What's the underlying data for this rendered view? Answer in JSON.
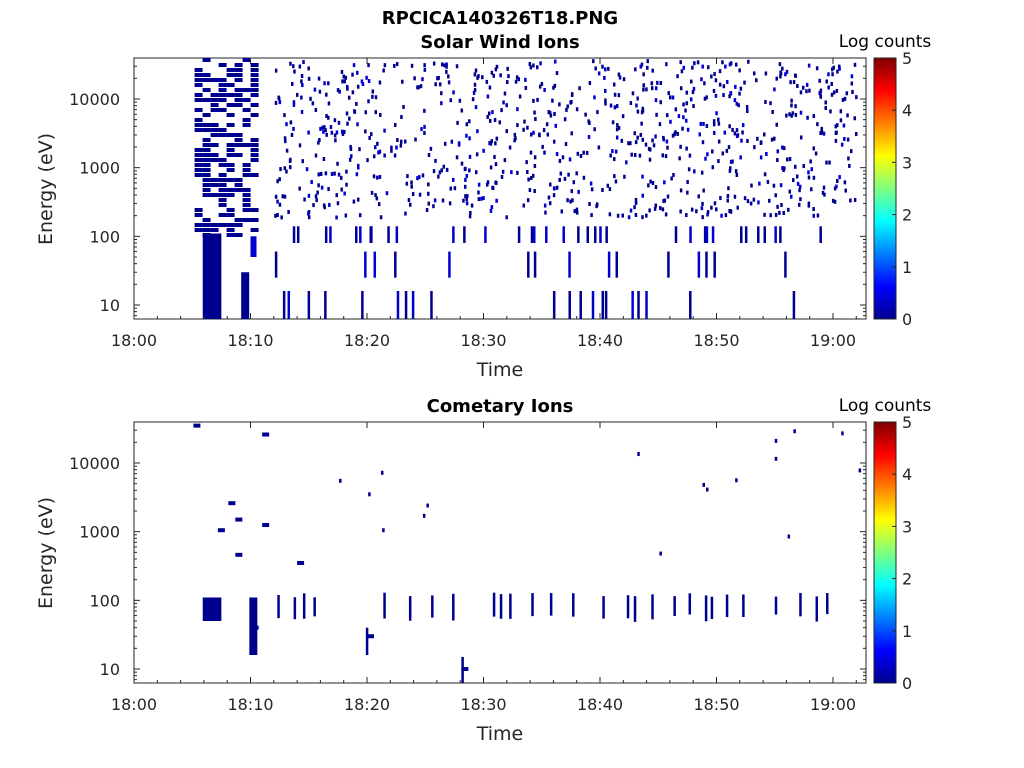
{
  "figure_title": "RPCICA140326T18.PNG",
  "chart_data": [
    {
      "type": "heatmap",
      "title": "Solar Wind Ions",
      "xlabel": "Time",
      "ylabel": "Energy (eV)",
      "x_ticks": [
        "18:00",
        "18:10",
        "18:20",
        "18:30",
        "18:40",
        "18:50",
        "19:00"
      ],
      "y_ticks": [
        "10",
        "100",
        "1000",
        "10000"
      ],
      "y_scale": "log",
      "colorbar": {
        "label": "Log counts",
        "ticks": [
          "0",
          "1",
          "2",
          "3",
          "4",
          "5"
        ],
        "range": [
          0,
          5
        ],
        "colormap": "jet"
      },
      "dense_block": {
        "t_start": "18:05",
        "t_end": "18:11",
        "e_low": 10,
        "e_high": 40000,
        "level": 0
      },
      "events_blue_density": "sparse counts scattered 18:12-19:02, mostly level 0-0.5"
    },
    {
      "type": "heatmap",
      "title": "Cometary Ions",
      "xlabel": "Time",
      "ylabel": "Energy (eV)",
      "x_ticks": [
        "18:00",
        "18:10",
        "18:20",
        "18:30",
        "18:40",
        "18:50",
        "19:00"
      ],
      "y_ticks": [
        "10",
        "100",
        "1000",
        "10000"
      ],
      "y_scale": "log",
      "colorbar": {
        "label": "Log counts",
        "ticks": [
          "0",
          "1",
          "2",
          "3",
          "4",
          "5"
        ],
        "range": [
          0,
          5
        ],
        "colormap": "jet"
      },
      "points": [
        {
          "t": "18:05.1",
          "e": 35000
        },
        {
          "t": "18:11.0",
          "e": 26000
        },
        {
          "t": "18:08.1",
          "e": 2600
        },
        {
          "t": "18:08.7",
          "e": 1500
        },
        {
          "t": "18:07.2",
          "e": 1050
        },
        {
          "t": "18:11.0",
          "e": 1250
        },
        {
          "t": "18:08.7",
          "e": 460
        },
        {
          "t": "18:14.0",
          "e": 350
        },
        {
          "t": "18:06.1",
          "e": 80
        },
        {
          "t": "18:10.1",
          "e": 40
        },
        {
          "t": "18:20.0",
          "e": 30
        },
        {
          "t": "18:28.1",
          "e": 10
        }
      ]
    }
  ]
}
